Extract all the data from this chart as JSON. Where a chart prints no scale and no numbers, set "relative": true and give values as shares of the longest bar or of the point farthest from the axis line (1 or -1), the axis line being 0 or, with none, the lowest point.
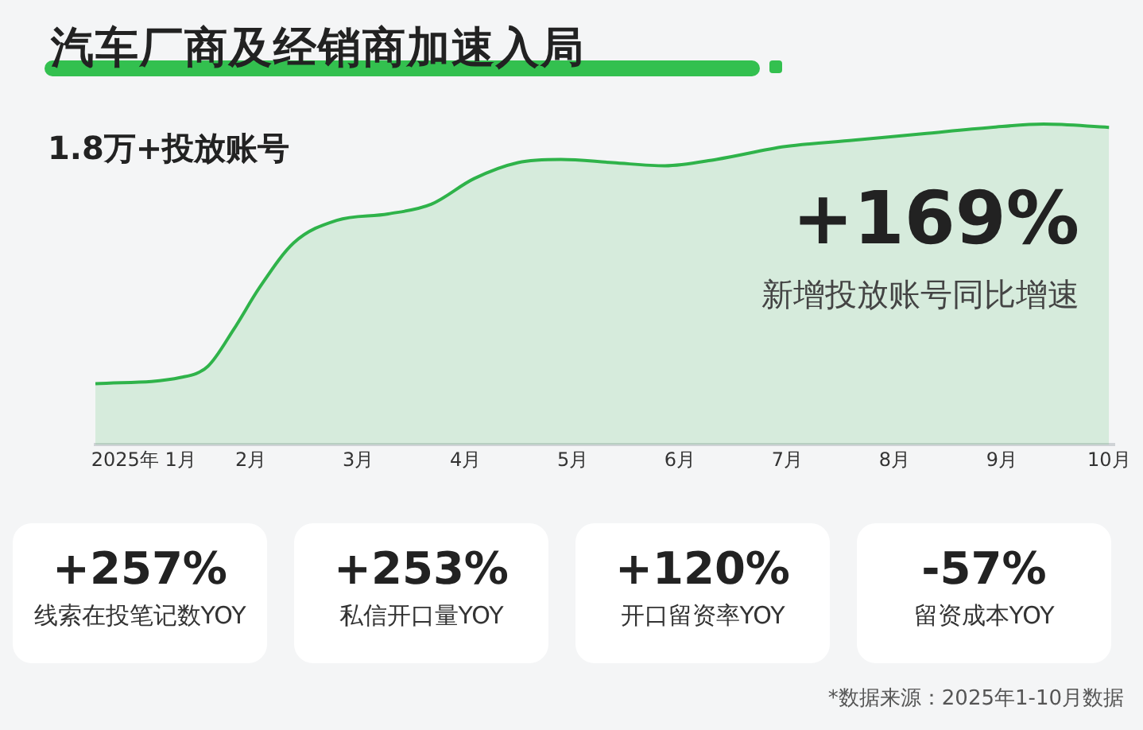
{
  "chart_data": [
    {
      "type": "area",
      "title": "汽车厂商及经销商加速入局",
      "subtitle": "1.8万+投放账号",
      "relative": true,
      "x": [
        0.55,
        1.35,
        1.6,
        1.84,
        2.08,
        2.4,
        2.8,
        3.28,
        3.68,
        4.08,
        4.49,
        4.89,
        5.37,
        5.86,
        6.34,
        6.98,
        7.62,
        8.26,
        8.9,
        9.39,
        10
      ],
      "series": [
        {
          "color": "#2fb34a",
          "values": [
            0.19,
            0.21,
            0.245,
            0.36,
            0.49,
            0.63,
            0.7,
            0.72,
            0.75,
            0.83,
            0.88,
            0.89,
            0.88,
            0.87,
            0.89,
            0.93,
            0.95,
            0.97,
            0.99,
            1,
            0.99
          ]
        }
      ],
      "xlim": [
        0.55,
        10.05
      ],
      "xticks": [
        {
          "value": 1,
          "label": "2025年 1月"
        },
        {
          "value": 2,
          "label": "2月"
        },
        {
          "value": 3,
          "label": "3月"
        },
        {
          "value": 4,
          "label": "4月"
        },
        {
          "value": 5,
          "label": "5月"
        },
        {
          "value": 6,
          "label": "6月"
        },
        {
          "value": 7,
          "label": "7月"
        },
        {
          "value": 8,
          "label": "8月"
        },
        {
          "value": 9,
          "label": "9月"
        },
        {
          "value": 10,
          "label": "10月"
        }
      ],
      "grid": false,
      "legend": false,
      "marker": "none",
      "line_style": "solid",
      "annotations": [
        "+169%",
        "新增投放账号同比增速",
        "*数据来源：2025年1-10月数据"
      ]
    },
    {
      "type": "other",
      "categories": [
        "线索在投笔记数YOY",
        "私信开口量YOY",
        "开口留资率YOY",
        "留资成本YOY"
      ],
      "values": [
        257,
        253,
        120,
        -57
      ],
      "value_labels": [
        "+257%",
        "+253%",
        "+120%",
        "-57%"
      ]
    }
  ]
}
